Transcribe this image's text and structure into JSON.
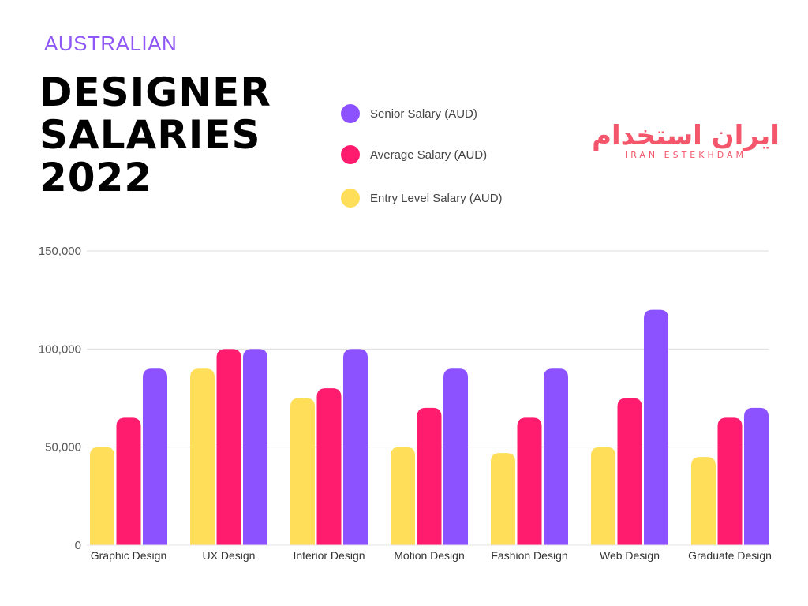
{
  "header": {
    "subtitle": "AUSTRALIAN",
    "title_lines": [
      "DESIGNER",
      "SALARIES",
      "2022"
    ]
  },
  "logo": {
    "text": "ایران استخدام",
    "subtext": "IRAN ESTEKHDAM"
  },
  "colors": {
    "entry": "#ffde59",
    "average": "#ff1b6d",
    "senior": "#8c52ff"
  },
  "chart_data": {
    "type": "bar",
    "categories": [
      "Graphic Design",
      "UX Design",
      "Interior Design",
      "Motion Design",
      "Fashion Design",
      "Web Design",
      "Graduate Design"
    ],
    "series": [
      {
        "name": "Entry Level Salary (AUD)",
        "values": [
          50000,
          90000,
          75000,
          50000,
          47000,
          50000,
          45000
        ],
        "color": "#ffde59"
      },
      {
        "name": "Average Salary (AUD)",
        "values": [
          65000,
          100000,
          80000,
          70000,
          65000,
          75000,
          65000
        ],
        "color": "#ff1b6d"
      },
      {
        "name": "Senior Salary (AUD)",
        "values": [
          90000,
          100000,
          100000,
          90000,
          90000,
          120000,
          70000
        ],
        "color": "#8c52ff"
      }
    ],
    "title": "DESIGNER SALARIES 2022",
    "subtitle": "AUSTRALIAN",
    "xlabel": "",
    "ylabel": "",
    "ylim": [
      0,
      150000
    ],
    "yticks": [
      0,
      50000,
      100000,
      150000
    ],
    "ytick_labels": [
      "0",
      "50,000",
      "100,000",
      "150,000"
    ],
    "grid": true,
    "legend": {
      "placement": "top-center",
      "entries": [
        "Senior Salary (AUD)",
        "Average Salary (AUD)",
        "Entry Level Salary (AUD)"
      ]
    }
  }
}
